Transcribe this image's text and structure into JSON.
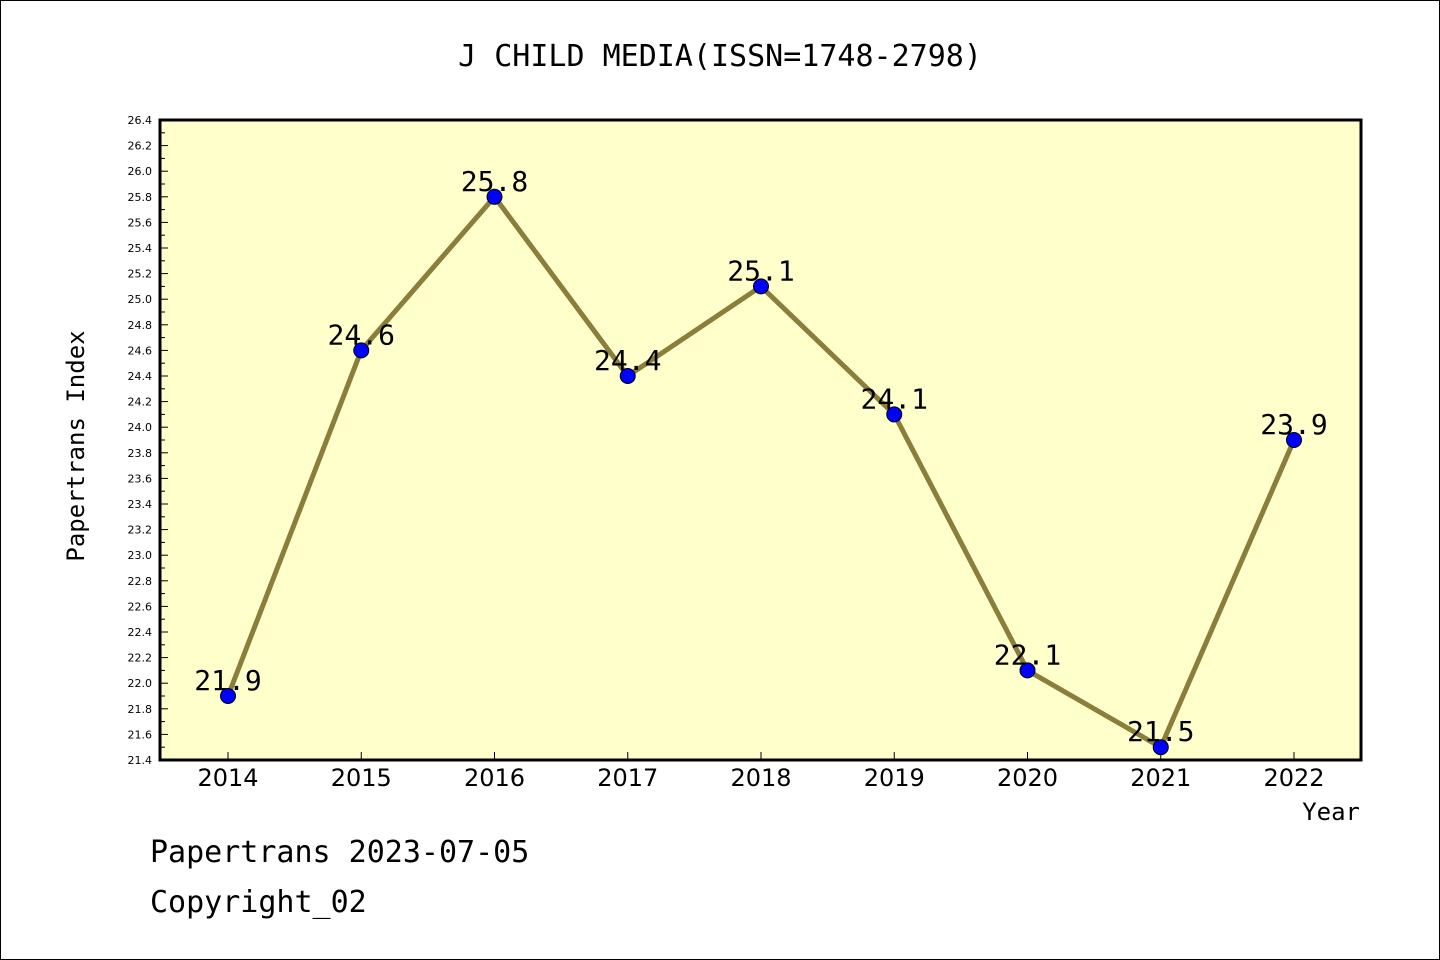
{
  "chart_data": {
    "type": "line",
    "title": "J CHILD MEDIA(ISSN=1748-2798)",
    "xlabel": "Year",
    "ylabel": "Papertrans Index",
    "categories": [
      "2014",
      "2015",
      "2016",
      "2017",
      "2018",
      "2019",
      "2020",
      "2021",
      "2022"
    ],
    "series": [
      {
        "values": [
          21.9,
          24.6,
          25.8,
          24.4,
          25.1,
          24.1,
          22.1,
          21.5,
          23.9
        ],
        "point_labels": [
          "21.9",
          "24.6",
          "25.8",
          "24.4",
          "25.1",
          "24.1",
          "22.1",
          "21.5",
          "23.9"
        ]
      }
    ],
    "ylim": [
      21.4,
      26.4
    ],
    "yticks": [
      "21.4",
      "21.6",
      "21.8",
      "22.0",
      "22.2",
      "22.4",
      "22.6",
      "22.8",
      "23.0",
      "23.2",
      "23.4",
      "23.6",
      "23.8",
      "24.0",
      "24.2",
      "24.4",
      "24.6",
      "24.8",
      "25.0",
      "25.2",
      "25.4",
      "25.6",
      "25.8",
      "26.0",
      "26.2",
      "26.4"
    ],
    "grid": false,
    "legend": "none",
    "colors": {
      "plot_background": "#ffffcc",
      "line": "#8b7d3a",
      "marker": "#0000ff"
    }
  },
  "footer": {
    "stamp": "Papertrans 2023-07-05",
    "copyright": "Copyright_02"
  }
}
